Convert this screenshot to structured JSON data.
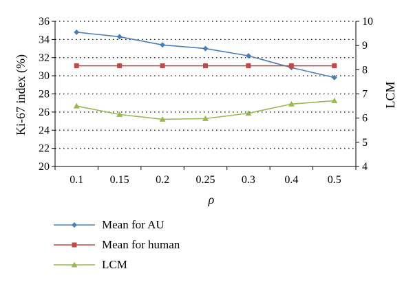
{
  "chart_data": {
    "type": "line",
    "categories": [
      "0.1",
      "0.15",
      "0.2",
      "0.25",
      "0.3",
      "0.4",
      "0.5"
    ],
    "xlabel": "ρ",
    "y_left": {
      "label": "Ki-67 index (%)",
      "min": 20,
      "max": 36,
      "step": 2,
      "ticks": [
        "20",
        "22",
        "24",
        "26",
        "28",
        "30",
        "32",
        "34",
        "36"
      ]
    },
    "y_right": {
      "label": "LCM",
      "min": 4,
      "max": 10,
      "step": 1,
      "ticks": [
        "4",
        "5",
        "6",
        "7",
        "8",
        "9",
        "10"
      ]
    },
    "grid": "dotted-horizontal",
    "legend_position": "bottom-left",
    "series": [
      {
        "name": "Mean for AU",
        "axis": "left",
        "color": "#4a7ebb",
        "marker": "diamond",
        "values": [
          34.8,
          34.3,
          33.4,
          33.0,
          32.2,
          30.9,
          29.8
        ]
      },
      {
        "name": "Mean for human",
        "axis": "left",
        "color": "#be4b48",
        "marker": "square",
        "values": [
          31.1,
          31.1,
          31.1,
          31.1,
          31.1,
          31.1,
          31.1
        ]
      },
      {
        "name": "LCM",
        "axis": "right",
        "color": "#98b954",
        "marker": "triangle",
        "values": [
          6.5,
          6.15,
          5.95,
          5.98,
          6.2,
          6.58,
          6.72
        ]
      }
    ]
  }
}
